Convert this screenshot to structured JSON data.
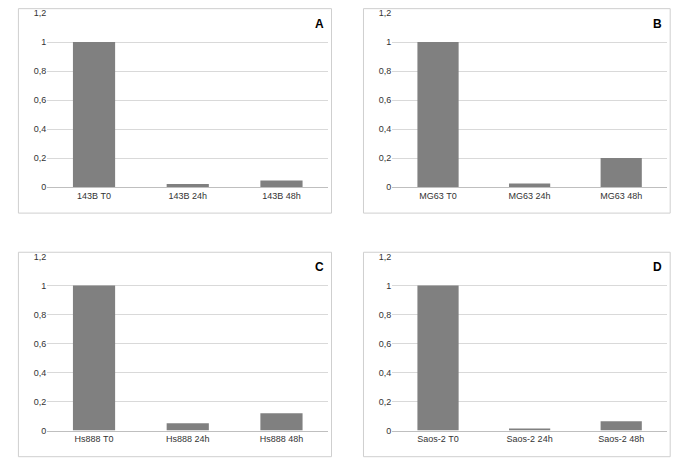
{
  "chart_data": [
    {
      "type": "bar",
      "title": "A",
      "categories": [
        "143B T0",
        "143B 24h",
        "143B 48h"
      ],
      "values": [
        1,
        0.02,
        0.045
      ],
      "color": "#808080",
      "ylim": [
        0,
        1.2
      ],
      "yticks": [
        0,
        {
          "value": 0.2,
          "label": "0,2"
        },
        {
          "value": 0.4,
          "label": "0,4"
        },
        {
          "value": 0.6,
          "label": "0,6"
        },
        {
          "value": 0.8,
          "label": "0,8"
        },
        1,
        {
          "value": 1.2,
          "label": "1,2"
        }
      ],
      "grid": true
    },
    {
      "type": "bar",
      "title": "B",
      "categories": [
        "MG63 T0",
        "MG63 24h",
        "MG63 48h"
      ],
      "values": [
        1,
        0.025,
        0.2
      ],
      "color": "#808080",
      "ylim": [
        0,
        1.2
      ],
      "yticks": [
        0,
        {
          "value": 0.2,
          "label": "0,2"
        },
        {
          "value": 0.4,
          "label": "0,4"
        },
        {
          "value": 0.6,
          "label": "0,6"
        },
        {
          "value": 0.8,
          "label": "0,8"
        },
        1,
        {
          "value": 1.2,
          "label": "1,2"
        }
      ],
      "grid": true
    },
    {
      "type": "bar",
      "title": "C",
      "categories": [
        "Hs888 T0",
        "Hs888 24h",
        "Hs888 48h"
      ],
      "values": [
        1,
        0.05,
        0.12
      ],
      "color": "#808080",
      "ylim": [
        0,
        1.2
      ],
      "yticks": [
        0,
        {
          "value": 0.2,
          "label": "0,2"
        },
        {
          "value": 0.4,
          "label": "0,4"
        },
        {
          "value": 0.6,
          "label": "0,6"
        },
        {
          "value": 0.8,
          "label": "0,8"
        },
        1,
        {
          "value": 1.2,
          "label": "1,2"
        }
      ],
      "grid": true
    },
    {
      "type": "bar",
      "title": "D",
      "categories": [
        "Saos-2 T0",
        "Saos-2 24h",
        "Saos-2 48h"
      ],
      "values": [
        1,
        0.015,
        0.065
      ],
      "color": "#808080",
      "ylim": [
        0,
        1.2
      ],
      "yticks": [
        0,
        {
          "value": 0.2,
          "label": "0,2"
        },
        {
          "value": 0.4,
          "label": "0,4"
        },
        {
          "value": 0.6,
          "label": "0,6"
        },
        {
          "value": 0.8,
          "label": "0,8"
        },
        1,
        {
          "value": 1.2,
          "label": "1,2"
        }
      ],
      "grid": true
    }
  ]
}
